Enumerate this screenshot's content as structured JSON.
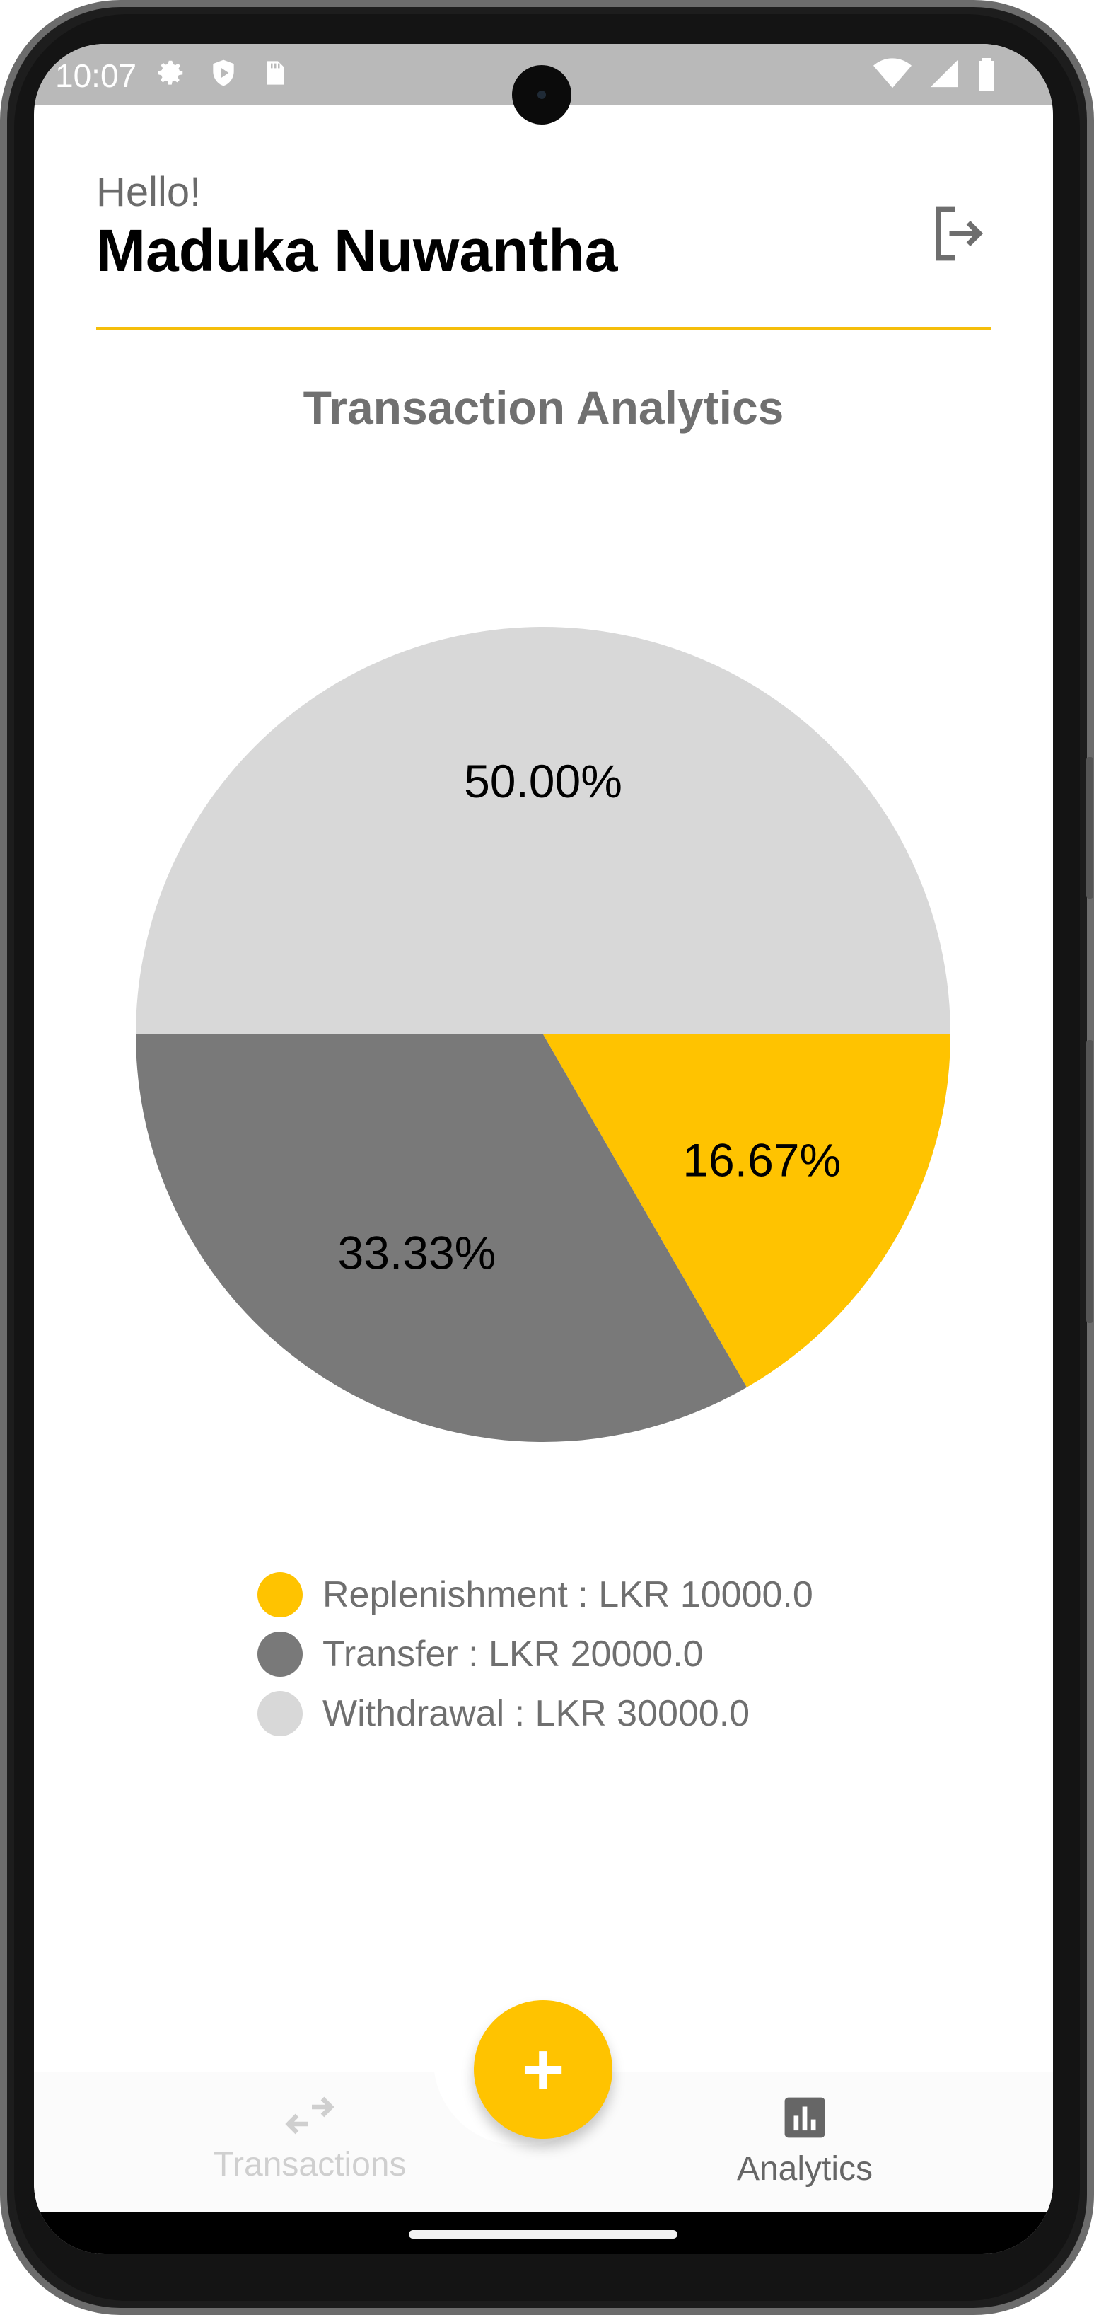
{
  "status_bar": {
    "time": "10:07"
  },
  "header": {
    "greeting": "Hello!",
    "user_name": "Maduka Nuwantha"
  },
  "page_title": "Transaction Analytics",
  "colors": {
    "accent": "#ffc300",
    "divider": "#f5be0b",
    "transfer": "#797979",
    "withdrawal": "#d8d8d8"
  },
  "chart_data": {
    "type": "pie",
    "slices": [
      {
        "label": "Replenishment",
        "value": 10000.0,
        "percent_label": "16.67%",
        "color": "#ffc300"
      },
      {
        "label": "Transfer",
        "value": 20000.0,
        "percent_label": "33.33%",
        "color": "#797979"
      },
      {
        "label": "Withdrawal",
        "value": 30000.0,
        "percent_label": "50.00%",
        "color": "#d8d8d8"
      }
    ],
    "legend": [
      "Replenishment : LKR 10000.0",
      "Transfer : LKR 20000.0",
      "Withdrawal : LKR 30000.0"
    ],
    "legend_position": "bottom"
  },
  "bottom_nav": {
    "items": [
      {
        "label": "Transactions",
        "icon": "swap-arrows-icon",
        "active": false
      },
      {
        "label": "Analytics",
        "icon": "bar-chart-icon",
        "active": true
      }
    ],
    "fab_icon": "plus-icon"
  }
}
